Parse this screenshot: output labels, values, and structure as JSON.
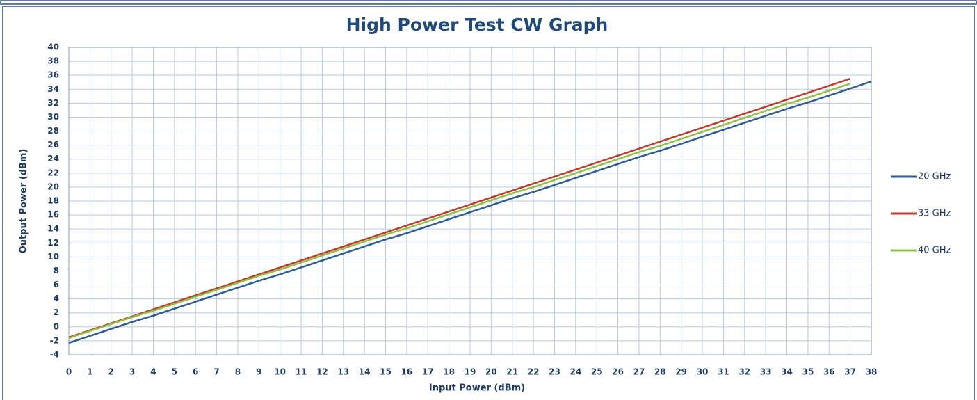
{
  "chart_data": {
    "type": "line",
    "title": "High Power Test  CW Graph",
    "x_label": "Input  Power (dBm)",
    "y_label": "Output Power  (dBm)",
    "x": [
      0,
      1,
      2,
      3,
      4,
      5,
      6,
      7,
      8,
      9,
      10,
      11,
      12,
      13,
      14,
      15,
      16,
      17,
      18,
      19,
      20,
      21,
      22,
      23,
      24,
      25,
      26,
      27,
      28,
      29,
      30,
      31,
      32,
      33,
      34,
      35,
      36,
      37,
      38
    ],
    "series": [
      {
        "name": "20 GHz",
        "color": "#2e5c94",
        "values": [
          -2.3,
          -1.3,
          -0.3,
          0.7,
          1.6,
          2.6,
          3.6,
          4.6,
          5.6,
          6.6,
          7.5,
          8.5,
          9.5,
          10.5,
          11.5,
          12.5,
          13.4,
          14.4,
          15.4,
          16.4,
          17.4,
          18.4,
          19.3,
          20.3,
          21.3,
          22.3,
          23.3,
          24.3,
          25.2,
          26.2,
          27.2,
          28.2,
          29.2,
          30.2,
          31.2,
          32.1,
          33.1,
          34.1,
          35.1
        ]
      },
      {
        "name": "33 GHz",
        "color": "#c0392b",
        "values": [
          -1.5,
          -0.5,
          0.5,
          1.5,
          2.5,
          3.5,
          4.5,
          5.5,
          6.5,
          7.5,
          8.5,
          9.5,
          10.5,
          11.5,
          12.5,
          13.5,
          14.5,
          15.5,
          16.5,
          17.5,
          18.5,
          19.5,
          20.5,
          21.5,
          22.5,
          23.5,
          24.5,
          25.5,
          26.5,
          27.5,
          28.5,
          29.5,
          30.5,
          31.5,
          32.5,
          33.5,
          34.5,
          35.5,
          null
        ]
      },
      {
        "name": "40 GHz",
        "color": "#92c047",
        "values": [
          -1.6,
          -0.6,
          0.4,
          1.4,
          2.3,
          3.3,
          4.3,
          5.3,
          6.3,
          7.3,
          8.2,
          9.2,
          10.2,
          11.2,
          12.2,
          13.2,
          14.1,
          15.1,
          16.1,
          17.1,
          18.1,
          19.1,
          20.0,
          21.0,
          22.0,
          23.0,
          24.0,
          25.0,
          25.9,
          26.9,
          27.9,
          28.9,
          29.9,
          30.9,
          31.9,
          32.8,
          33.8,
          34.8,
          null
        ]
      }
    ],
    "xlim": [
      0,
      38
    ],
    "ylim": [
      -4,
      40
    ],
    "xticks": [
      0,
      1,
      2,
      3,
      4,
      5,
      6,
      7,
      8,
      9,
      10,
      11,
      12,
      13,
      14,
      15,
      16,
      17,
      18,
      19,
      20,
      21,
      22,
      23,
      24,
      25,
      26,
      27,
      28,
      29,
      30,
      31,
      32,
      33,
      34,
      35,
      36,
      37,
      38
    ],
    "yticks": [
      -4,
      -2,
      0,
      2,
      4,
      6,
      8,
      10,
      12,
      14,
      16,
      18,
      20,
      22,
      24,
      26,
      28,
      30,
      32,
      34,
      36,
      38,
      40
    ],
    "grid": true,
    "legend": "right"
  }
}
